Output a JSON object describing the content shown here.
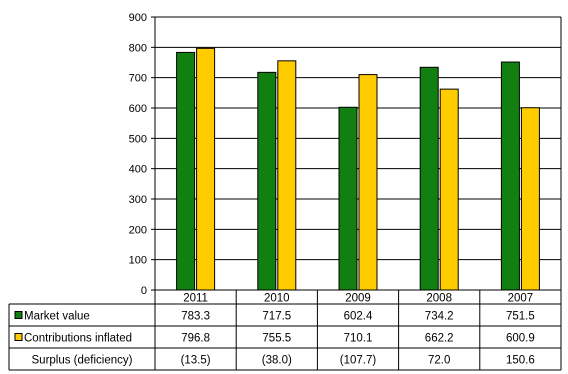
{
  "chart_data": {
    "type": "bar",
    "title": "",
    "xlabel": "",
    "ylabel": "",
    "categories": [
      "2011",
      "2010",
      "2009",
      "2008",
      "2007"
    ],
    "ylim": [
      0,
      900
    ],
    "yticks": [
      "0",
      "100",
      "200",
      "300",
      "400",
      "500",
      "600",
      "700",
      "800",
      "900"
    ],
    "grid": true,
    "legend": "data-table",
    "series": [
      {
        "name": "Market value",
        "color": "#118011",
        "values": [
          783.3,
          717.5,
          602.4,
          734.2,
          751.5
        ]
      },
      {
        "name": "Contributions inflated",
        "color": "#ffcc00",
        "values": [
          796.8,
          755.5,
          710.1,
          662.2,
          600.9
        ]
      }
    ],
    "table": {
      "rows": [
        {
          "label": "Market value",
          "swatch": "#118011",
          "values": [
            "783.3",
            "717.5",
            "602.4",
            "734.2",
            "751.5"
          ]
        },
        {
          "label": "Contributions inflated",
          "swatch": "#ffcc00",
          "values": [
            "796.8",
            "755.5",
            "710.1",
            "662.2",
            "600.9"
          ]
        },
        {
          "label": "Surplus (deficiency)",
          "swatch": "",
          "values": [
            "(13.5)",
            "(38.0)",
            "(107.7)",
            "72.0",
            "150.6"
          ]
        }
      ]
    }
  }
}
